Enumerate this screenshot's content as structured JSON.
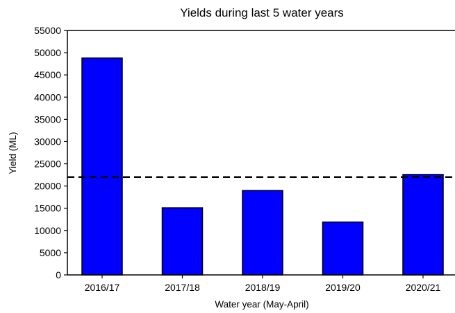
{
  "chart_data": {
    "type": "bar",
    "title": "Yields during last 5 water years",
    "xlabel": "Water year (May-April)",
    "ylabel": "Yield (ML)",
    "categories": [
      "2016/17",
      "2017/18",
      "2018/19",
      "2019/20",
      "2020/21"
    ],
    "values": [
      48800,
      15100,
      19000,
      11900,
      22600
    ],
    "reference_line": {
      "value": 22000,
      "style": "dashed"
    },
    "ylim": [
      0,
      55000
    ],
    "yticks": [
      0,
      5000,
      10000,
      15000,
      20000,
      25000,
      30000,
      35000,
      40000,
      45000,
      50000,
      55000
    ],
    "grid": false,
    "legend": "none",
    "bar_color": "#0000ff",
    "bar_edge_color": "#000000"
  }
}
